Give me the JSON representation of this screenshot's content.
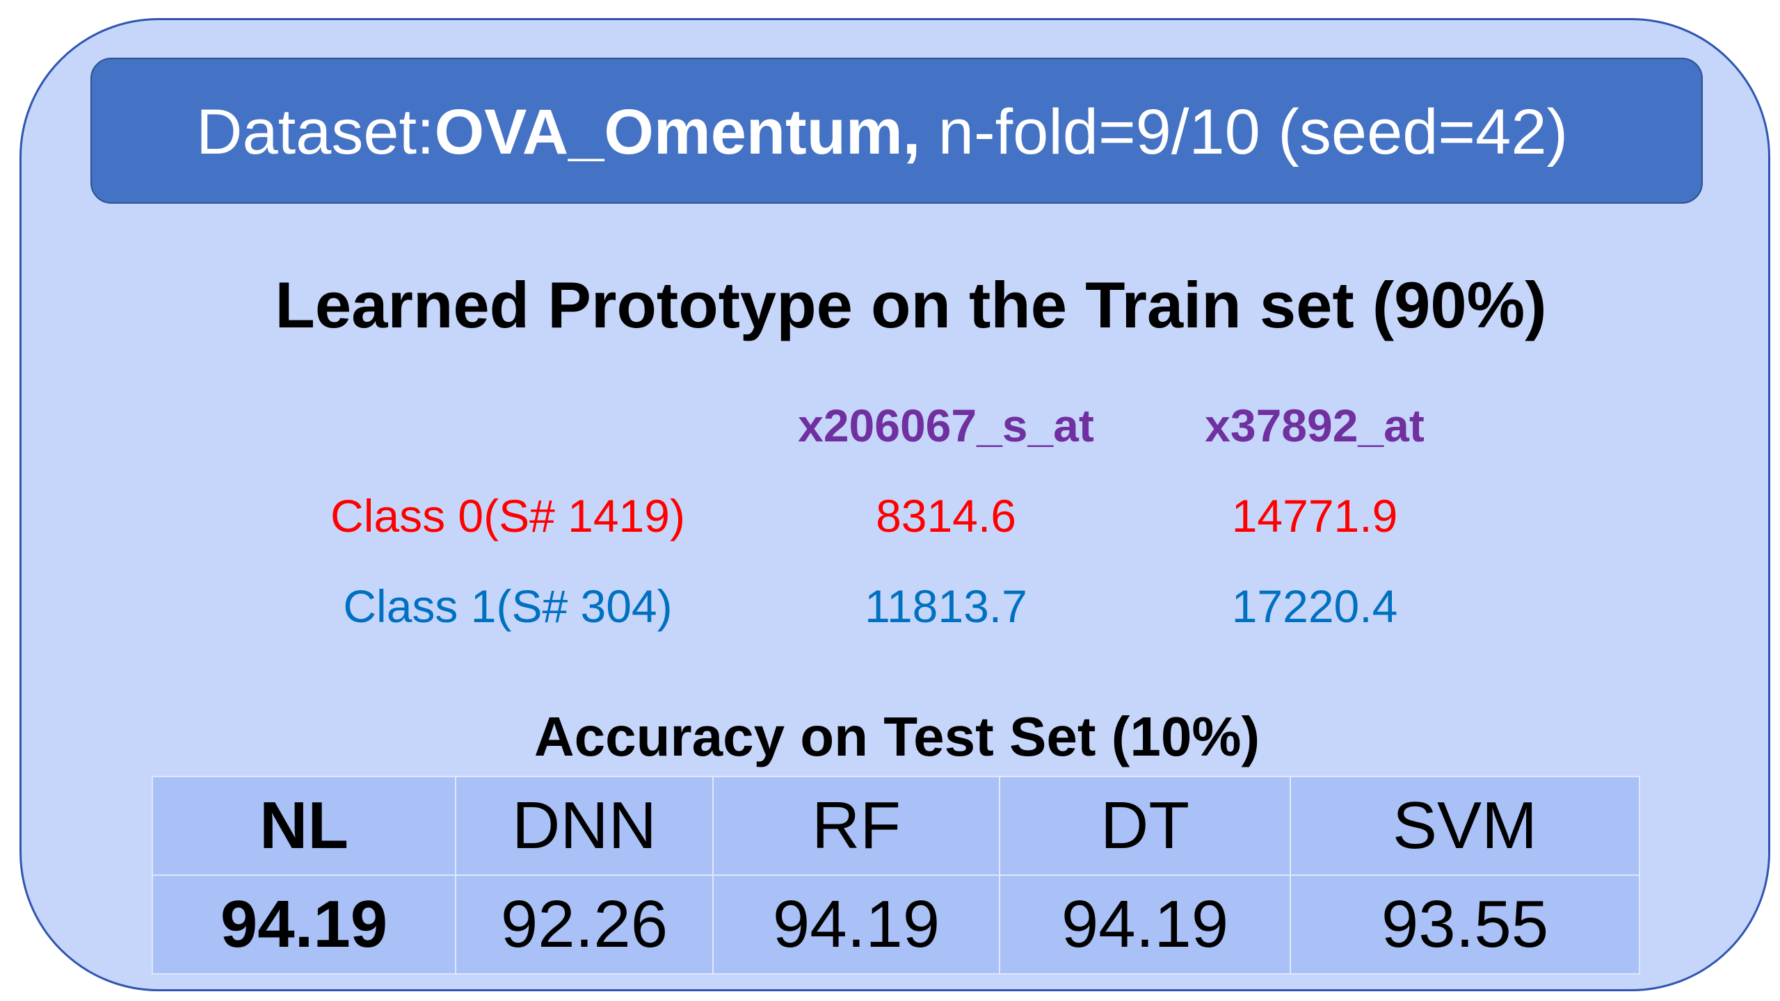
{
  "banner": {
    "prefix": "Dataset:",
    "dataset_name": "OVA_Omentum,",
    "suffix": " n-fold=9/10 (seed=42)"
  },
  "prototype": {
    "title": "Learned Prototype on the Train set (90%)",
    "features": [
      "x206067_s_at",
      "x37892_at"
    ],
    "classes": [
      {
        "label": "Class 0(S# 1419)",
        "values": [
          "8314.6",
          "14771.9"
        ]
      },
      {
        "label": "Class 1(S# 304)",
        "values": [
          "11813.7",
          "17220.4"
        ]
      }
    ]
  },
  "accuracy": {
    "title": "Accuracy on Test Set (10%)",
    "models": [
      "NL",
      "DNN",
      "RF",
      "DT",
      "SVM"
    ],
    "values": [
      "94.19",
      "92.26",
      "94.19",
      "94.19",
      "93.55"
    ]
  },
  "colors": {
    "card": "#c6d6fb",
    "banner": "#4472c4",
    "feature_header": "#7030a0",
    "class_0": "#ff0000",
    "class_1": "#0070c0"
  }
}
